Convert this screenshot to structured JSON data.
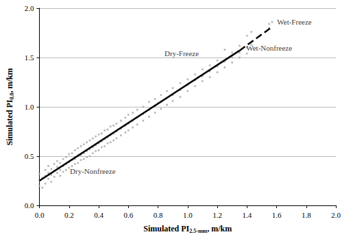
{
  "chart_data": {
    "type": "scatter",
    "xlabel": {
      "main": "Simulated PI",
      "subscript": "2.5-mm",
      "unit": ", m/km"
    },
    "ylabel": {
      "main": "Simulated PI",
      "subscript": "0.0",
      "unit": ", m/km"
    },
    "xlim": [
      0,
      2
    ],
    "ylim": [
      0,
      2
    ],
    "xticks": [
      {
        "value": 0,
        "label": "0.0"
      },
      0.2,
      0.4,
      0.6,
      0.8,
      {
        "value": 1,
        "label": "1.0"
      },
      1.2,
      1.4,
      1.6,
      1.8,
      {
        "value": 2,
        "label": "2.0"
      }
    ],
    "yticks": [
      {
        "value": 0,
        "label": "0.0"
      },
      0.5,
      {
        "value": 1,
        "label": "1.0"
      },
      1.5,
      {
        "value": 2,
        "label": "2.0"
      }
    ],
    "grid": "y",
    "series": [
      {
        "type": "scatter",
        "color": "#a6a6a6",
        "marker": "circle",
        "x": [
          0.0,
          0.0,
          0.0,
          0.02,
          0.02,
          0.04,
          0.04,
          0.04,
          0.06,
          0.06,
          0.06,
          0.08,
          0.08,
          0.08,
          0.1,
          0.1,
          0.1,
          0.12,
          0.12,
          0.12,
          0.14,
          0.14,
          0.14,
          0.16,
          0.16,
          0.16,
          0.18,
          0.18,
          0.18,
          0.2,
          0.2,
          0.2,
          0.22,
          0.22,
          0.22,
          0.24,
          0.24,
          0.24,
          0.26,
          0.26,
          0.26,
          0.28,
          0.28,
          0.28,
          0.3,
          0.3,
          0.3,
          0.32,
          0.32,
          0.32,
          0.34,
          0.34,
          0.34,
          0.36,
          0.36,
          0.36,
          0.38,
          0.38,
          0.38,
          0.4,
          0.4,
          0.4,
          0.42,
          0.42,
          0.42,
          0.44,
          0.44,
          0.44,
          0.46,
          0.46,
          0.46,
          0.48,
          0.48,
          0.48,
          0.5,
          0.5,
          0.5,
          0.52,
          0.52,
          0.52,
          0.55,
          0.55,
          0.55,
          0.58,
          0.58,
          0.58,
          0.6,
          0.6,
          0.6,
          0.63,
          0.63,
          0.63,
          0.66,
          0.66,
          0.66,
          0.7,
          0.7,
          0.7,
          0.74,
          0.74,
          0.74,
          0.78,
          0.78,
          0.78,
          0.82,
          0.82,
          0.82,
          0.86,
          0.86,
          0.86,
          0.9,
          0.9,
          0.9,
          0.95,
          0.95,
          0.95,
          1.0,
          1.0,
          1.0,
          1.05,
          1.05,
          1.05,
          1.1,
          1.1,
          1.1,
          1.15,
          1.15,
          1.15,
          1.2,
          1.2,
          1.2,
          1.25,
          1.25,
          1.25,
          1.3,
          1.3,
          1.3,
          1.35,
          1.35,
          1.35,
          1.4,
          1.4,
          1.4,
          1.43,
          1.43,
          1.55,
          1.55,
          1.57
        ],
        "values": [
          0.25,
          0.2,
          0.32,
          0.28,
          0.18,
          0.3,
          0.22,
          0.36,
          0.27,
          0.33,
          0.4,
          0.31,
          0.24,
          0.37,
          0.35,
          0.29,
          0.42,
          0.33,
          0.39,
          0.45,
          0.36,
          0.3,
          0.43,
          0.4,
          0.34,
          0.47,
          0.42,
          0.36,
          0.49,
          0.44,
          0.38,
          0.52,
          0.46,
          0.4,
          0.53,
          0.47,
          0.42,
          0.56,
          0.5,
          0.43,
          0.58,
          0.51,
          0.46,
          0.6,
          0.53,
          0.47,
          0.62,
          0.55,
          0.49,
          0.64,
          0.57,
          0.5,
          0.66,
          0.59,
          0.53,
          0.68,
          0.61,
          0.55,
          0.7,
          0.63,
          0.56,
          0.72,
          0.65,
          0.59,
          0.73,
          0.67,
          0.6,
          0.76,
          0.69,
          0.63,
          0.77,
          0.71,
          0.64,
          0.8,
          0.73,
          0.66,
          0.81,
          0.75,
          0.68,
          0.83,
          0.78,
          0.71,
          0.86,
          0.81,
          0.74,
          0.89,
          0.83,
          0.76,
          0.92,
          0.86,
          0.79,
          0.94,
          0.89,
          0.82,
          0.97,
          0.93,
          0.86,
          1.0,
          0.97,
          0.9,
          1.05,
          1.01,
          0.94,
          1.08,
          1.05,
          0.98,
          1.12,
          1.09,
          1.02,
          1.16,
          1.12,
          1.06,
          1.19,
          1.17,
          1.1,
          1.24,
          1.22,
          1.16,
          1.28,
          1.27,
          1.21,
          1.33,
          1.31,
          1.26,
          1.38,
          1.36,
          1.3,
          1.42,
          1.41,
          1.35,
          1.47,
          1.46,
          1.4,
          1.58,
          1.5,
          1.45,
          1.55,
          1.55,
          1.5,
          1.62,
          1.6,
          1.54,
          1.72,
          1.63,
          1.76,
          1.8,
          1.84,
          1.86
        ]
      },
      {
        "type": "line",
        "color": "#000000",
        "line_style": "solid",
        "x": [
          0,
          1.35
        ],
        "values": [
          0.25,
          1.57
        ]
      },
      {
        "type": "line",
        "color": "#000000",
        "line_style": "dashed",
        "x": [
          1.35,
          1.56
        ],
        "values": [
          1.57,
          1.8
        ]
      }
    ],
    "annotations": [
      {
        "text": "Wet-Freeze",
        "x": 1.72,
        "y": 1.86
      },
      {
        "text": "Dry-Freeze",
        "x": 0.96,
        "y": 1.54
      },
      {
        "text": "Wet-Nonfreeze",
        "x": 1.55,
        "y": 1.6
      },
      {
        "text": "Dry-Nonfreeze",
        "x": 0.36,
        "y": 0.35
      }
    ]
  }
}
